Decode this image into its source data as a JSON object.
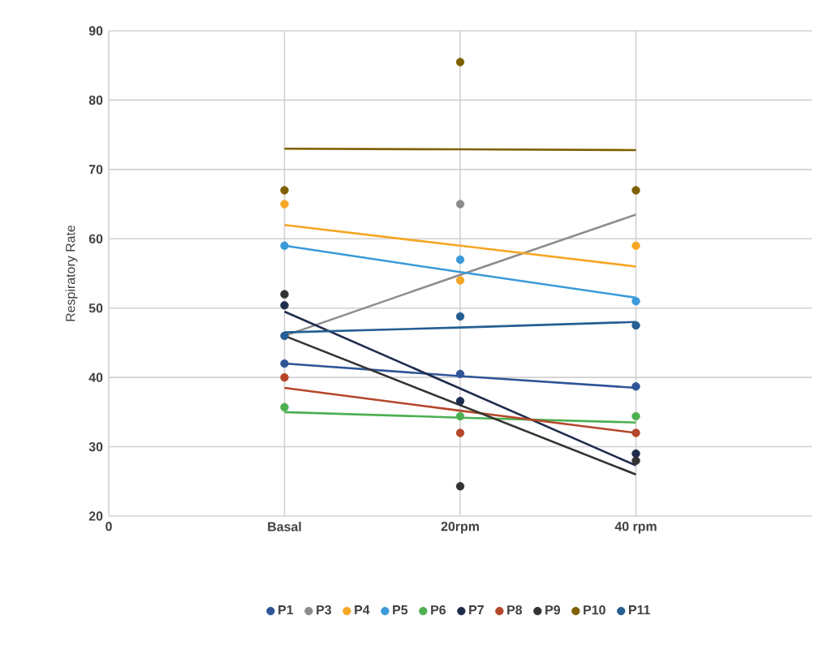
{
  "chart_data": {
    "type": "scatter",
    "ylabel": "Respiratory Rate",
    "categories": [
      "0",
      "Basal",
      "20rpm",
      "40 rpm"
    ],
    "ylim": [
      20,
      90
    ],
    "yticks": [
      20,
      30,
      40,
      50,
      60,
      70,
      80,
      90
    ],
    "grid": true,
    "legend": "bottom",
    "series": [
      {
        "name": "P1",
        "marker": "circle",
        "color": "#2f5597",
        "values": [
          null,
          42,
          40.5,
          38.7
        ]
      },
      {
        "name": "P3",
        "marker": "circle",
        "color": "#8c8c8c",
        "values": [
          null,
          null,
          65,
          null
        ]
      },
      {
        "name": "P4",
        "marker": "circle",
        "color": "#f5a623",
        "values": [
          null,
          65,
          54,
          59
        ]
      },
      {
        "name": "P5",
        "marker": "circle",
        "color": "#3a9ad9",
        "values": [
          null,
          59,
          57,
          51
        ]
      },
      {
        "name": "P6",
        "marker": "circle",
        "color": "#4caf50",
        "values": [
          null,
          35.7,
          34.4,
          34.4
        ]
      },
      {
        "name": "P7",
        "marker": "circle",
        "color": "#1f2d4d",
        "values": [
          null,
          50.4,
          36.6,
          29
        ]
      },
      {
        "name": "P8",
        "marker": "circle",
        "color": "#b5462a",
        "values": [
          null,
          40,
          32,
          32
        ]
      },
      {
        "name": "P9",
        "marker": "circle",
        "color": "#333333",
        "values": [
          null,
          52,
          24.3,
          28
        ]
      },
      {
        "name": "P10",
        "marker": "circle",
        "color": "#7f6000",
        "values": [
          null,
          67,
          85.5,
          67
        ]
      },
      {
        "name": "P11",
        "marker": "circle",
        "color": "#255e91",
        "values": [
          null,
          46,
          48.8,
          47.5
        ]
      },
      {
        "type": "line",
        "marker": "none",
        "color": "#2f5597",
        "values": [
          null,
          42,
          40.2,
          38.5
        ]
      },
      {
        "type": "line",
        "marker": "none",
        "color": "#8c8c8c",
        "values": [
          null,
          46,
          54.8,
          63.5
        ]
      },
      {
        "type": "line",
        "marker": "none",
        "color": "#f5a623",
        "values": [
          null,
          62,
          59,
          56
        ]
      },
      {
        "type": "line",
        "marker": "none",
        "color": "#3a9ad9",
        "values": [
          null,
          59,
          55.2,
          51.5
        ]
      },
      {
        "type": "line",
        "marker": "none",
        "color": "#4caf50",
        "values": [
          null,
          35,
          34.2,
          33.5
        ]
      },
      {
        "type": "line",
        "marker": "none",
        "color": "#1f2d4d",
        "values": [
          null,
          49.5,
          38.4,
          27.3
        ]
      },
      {
        "type": "line",
        "marker": "none",
        "color": "#b5462a",
        "values": [
          null,
          38.5,
          35.2,
          32
        ]
      },
      {
        "type": "line",
        "marker": "none",
        "color": "#333333",
        "values": [
          null,
          46,
          36,
          26
        ]
      },
      {
        "type": "line",
        "marker": "none",
        "color": "#7f6000",
        "values": [
          null,
          73,
          72.9,
          72.8
        ]
      },
      {
        "type": "line",
        "marker": "none",
        "color": "#255e91",
        "values": [
          null,
          46.5,
          47.2,
          48
        ]
      }
    ]
  }
}
